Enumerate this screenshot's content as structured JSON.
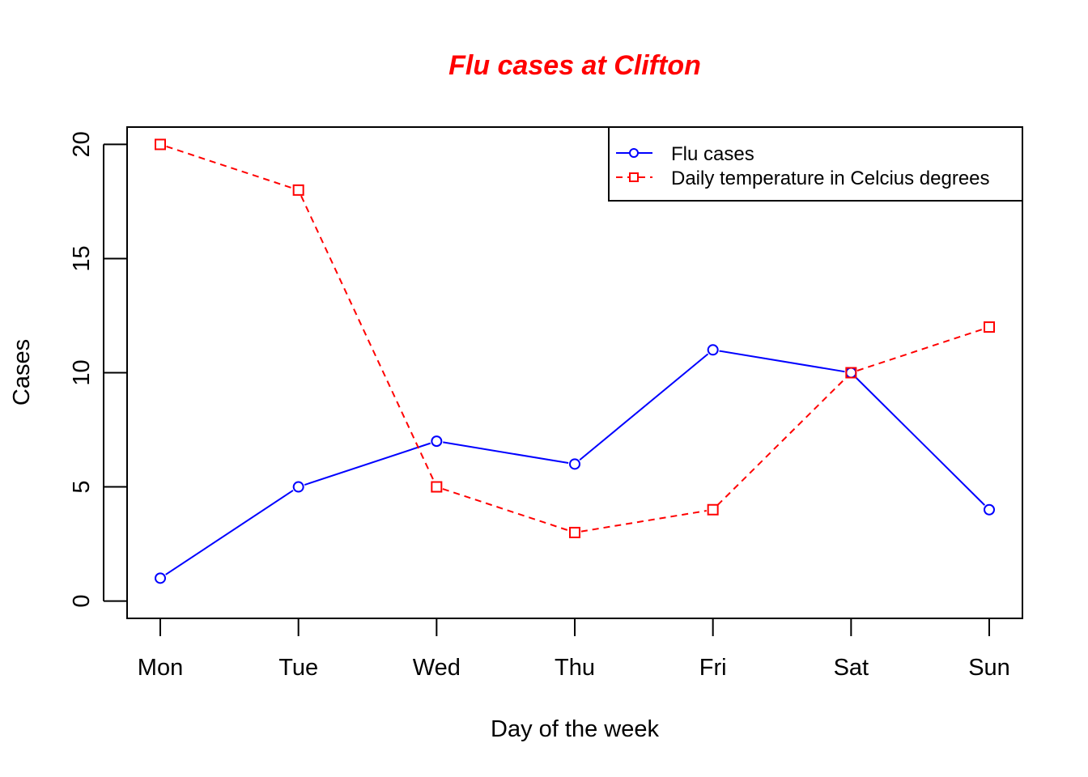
{
  "chart_data": {
    "type": "line",
    "title": "Flu cases at Clifton",
    "title_color": "#ff0000",
    "xlabel": "Day of the week",
    "ylabel": "Cases",
    "categories": [
      "Mon",
      "Tue",
      "Wed",
      "Thu",
      "Fri",
      "Sat",
      "Sun"
    ],
    "yticks": [
      "0",
      "5",
      "10",
      "15",
      "20"
    ],
    "ylim": [
      -0.76,
      20.76
    ],
    "grid": false,
    "legend_position": "top-right",
    "series": [
      {
        "name": "Flu cases",
        "values": [
          1,
          5,
          7,
          6,
          11,
          10,
          4
        ],
        "color": "#0000ff",
        "line_style": "solid",
        "marker": "circle"
      },
      {
        "name": "Daily temperature in Celcius degrees",
        "values": [
          20,
          18,
          5,
          3,
          4,
          10,
          12
        ],
        "color": "#ff0000",
        "line_style": "dashed",
        "marker": "square"
      }
    ]
  }
}
